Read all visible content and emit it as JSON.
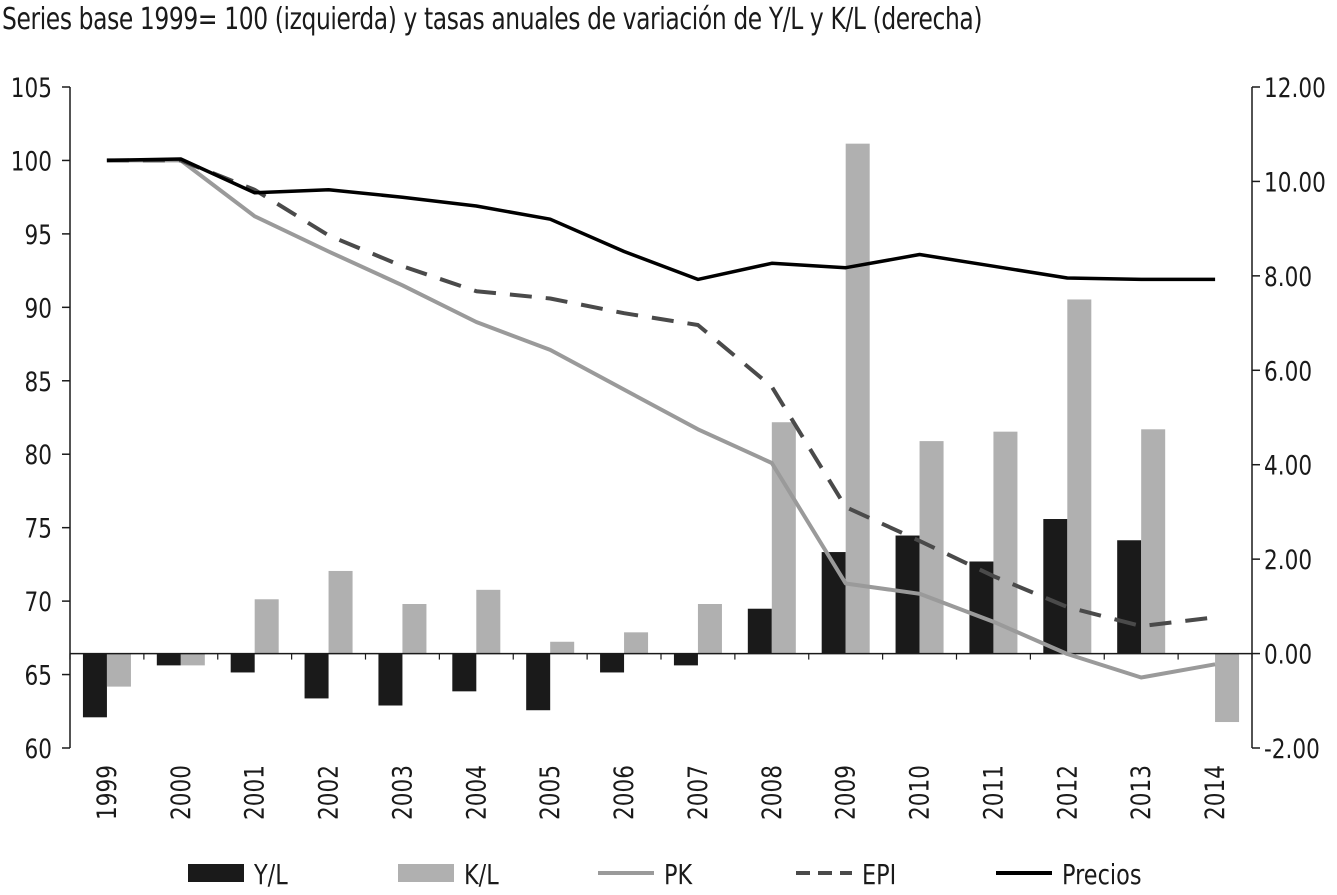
{
  "chart_data": {
    "type": "bar",
    "title": "Series base 1999= 100 (izquierda) y tasas anuales de variación de Y/L y K/L (derecha)",
    "categories": [
      "1999",
      "2000",
      "2001",
      "2002",
      "2003",
      "2004",
      "2005",
      "2006",
      "2007",
      "2008",
      "2009",
      "2010",
      "2011",
      "2012",
      "2013",
      "2014"
    ],
    "y_left": {
      "ylim": [
        60,
        105
      ],
      "ticks": [
        "60",
        "65",
        "70",
        "75",
        "80",
        "85",
        "90",
        "95",
        "100",
        "105"
      ]
    },
    "y_right": {
      "ylim": [
        -2,
        12
      ],
      "ticks": [
        "-2.00",
        "0.00",
        "2.00",
        "4.00",
        "6.00",
        "8.00",
        "10.00",
        "12.00"
      ]
    },
    "series": [
      {
        "name": "Y/L",
        "kind": "bar",
        "axis": "right",
        "color": "#1a1a1a",
        "values": [
          -1.35,
          -0.25,
          -0.4,
          -0.95,
          -1.1,
          -0.8,
          -1.2,
          -0.4,
          -0.25,
          0.95,
          2.15,
          2.5,
          1.95,
          2.85,
          2.4,
          0.0
        ]
      },
      {
        "name": "K/L",
        "kind": "bar",
        "axis": "right",
        "color": "#b0b0b0",
        "values": [
          -0.7,
          -0.25,
          1.15,
          1.75,
          1.05,
          1.35,
          0.25,
          0.45,
          1.05,
          4.9,
          10.8,
          4.5,
          4.7,
          7.5,
          4.75,
          -1.45
        ]
      },
      {
        "name": "PK",
        "kind": "line",
        "axis": "left",
        "color": "#9a9a9a",
        "style": "solid",
        "values": [
          100.0,
          100.0,
          96.2,
          93.8,
          91.5,
          89.0,
          87.1,
          84.4,
          81.7,
          79.4,
          71.2,
          70.5,
          68.6,
          66.4,
          64.8,
          65.7
        ]
      },
      {
        "name": "EPI",
        "kind": "line",
        "axis": "left",
        "color": "#4a4a4a",
        "style": "dashed",
        "values": [
          100.0,
          100.0,
          98.0,
          94.9,
          92.8,
          91.1,
          90.6,
          89.6,
          88.8,
          84.6,
          76.4,
          74.1,
          71.7,
          69.6,
          68.3,
          68.9
        ]
      },
      {
        "name": "Precios",
        "kind": "line",
        "axis": "left",
        "color": "#000000",
        "style": "solid",
        "values": [
          100.0,
          100.1,
          97.8,
          98.0,
          97.5,
          96.9,
          96.0,
          93.8,
          91.9,
          93.0,
          92.7,
          93.6,
          92.8,
          92.0,
          91.9,
          91.9
        ]
      }
    ],
    "legend": {
      "position": "bottom"
    },
    "grid": false
  }
}
